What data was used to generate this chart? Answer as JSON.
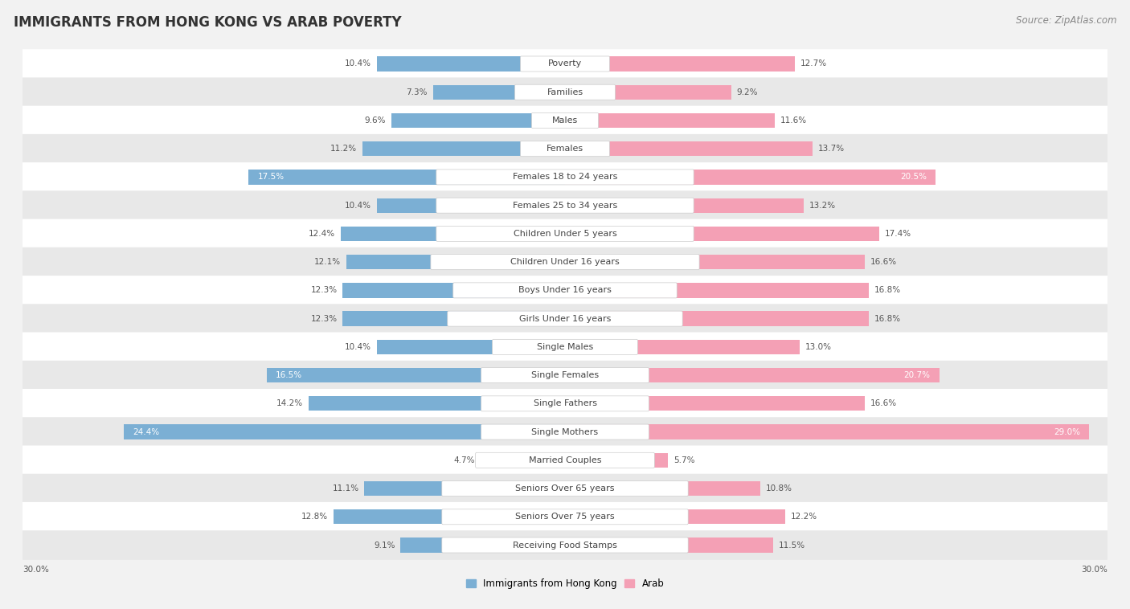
{
  "title": "IMMIGRANTS FROM HONG KONG VS ARAB POVERTY",
  "source": "Source: ZipAtlas.com",
  "categories": [
    "Poverty",
    "Families",
    "Males",
    "Females",
    "Females 18 to 24 years",
    "Females 25 to 34 years",
    "Children Under 5 years",
    "Children Under 16 years",
    "Boys Under 16 years",
    "Girls Under 16 years",
    "Single Males",
    "Single Females",
    "Single Fathers",
    "Single Mothers",
    "Married Couples",
    "Seniors Over 65 years",
    "Seniors Over 75 years",
    "Receiving Food Stamps"
  ],
  "hk_values": [
    10.4,
    7.3,
    9.6,
    11.2,
    17.5,
    10.4,
    12.4,
    12.1,
    12.3,
    12.3,
    10.4,
    16.5,
    14.2,
    24.4,
    4.7,
    11.1,
    12.8,
    9.1
  ],
  "arab_values": [
    12.7,
    9.2,
    11.6,
    13.7,
    20.5,
    13.2,
    17.4,
    16.6,
    16.8,
    16.8,
    13.0,
    20.7,
    16.6,
    29.0,
    5.7,
    10.8,
    12.2,
    11.5
  ],
  "hk_color": "#7bafd4",
  "arab_color": "#f4a0b5",
  "hk_label": "Immigrants from Hong Kong",
  "arab_label": "Arab",
  "max_val": 30.0,
  "bg_color": "#f2f2f2",
  "row_color_light": "#ffffff",
  "row_color_dark": "#e8e8e8",
  "title_fontsize": 12,
  "source_fontsize": 8.5,
  "cat_fontsize": 8,
  "value_fontsize": 7.5
}
